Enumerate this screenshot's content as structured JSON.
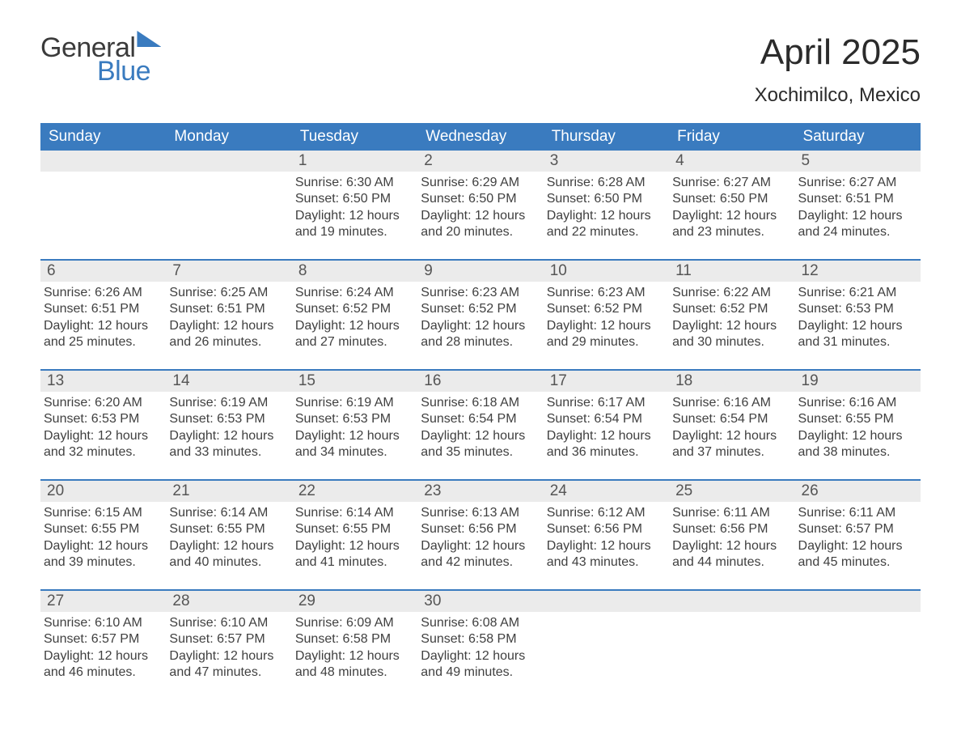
{
  "logo": {
    "general": "General",
    "blue": "Blue"
  },
  "title": "April 2025",
  "location": "Xochimilco, Mexico",
  "colors": {
    "header_bg": "#3a7bbf",
    "header_text": "#ffffff",
    "daynum_bg": "#ebebeb",
    "daynum_text": "#555555",
    "body_text": "#404040",
    "border": "#3a7bbf",
    "page_bg": "#ffffff"
  },
  "typography": {
    "title_fontsize": 44,
    "location_fontsize": 24,
    "weekday_fontsize": 19,
    "daynum_fontsize": 19,
    "body_fontsize": 16
  },
  "weekdays": [
    "Sunday",
    "Monday",
    "Tuesday",
    "Wednesday",
    "Thursday",
    "Friday",
    "Saturday"
  ],
  "weeks": [
    [
      null,
      null,
      {
        "n": "1",
        "sr": "Sunrise: 6:30 AM",
        "ss": "Sunset: 6:50 PM",
        "dl1": "Daylight: 12 hours",
        "dl2": "and 19 minutes."
      },
      {
        "n": "2",
        "sr": "Sunrise: 6:29 AM",
        "ss": "Sunset: 6:50 PM",
        "dl1": "Daylight: 12 hours",
        "dl2": "and 20 minutes."
      },
      {
        "n": "3",
        "sr": "Sunrise: 6:28 AM",
        "ss": "Sunset: 6:50 PM",
        "dl1": "Daylight: 12 hours",
        "dl2": "and 22 minutes."
      },
      {
        "n": "4",
        "sr": "Sunrise: 6:27 AM",
        "ss": "Sunset: 6:50 PM",
        "dl1": "Daylight: 12 hours",
        "dl2": "and 23 minutes."
      },
      {
        "n": "5",
        "sr": "Sunrise: 6:27 AM",
        "ss": "Sunset: 6:51 PM",
        "dl1": "Daylight: 12 hours",
        "dl2": "and 24 minutes."
      }
    ],
    [
      {
        "n": "6",
        "sr": "Sunrise: 6:26 AM",
        "ss": "Sunset: 6:51 PM",
        "dl1": "Daylight: 12 hours",
        "dl2": "and 25 minutes."
      },
      {
        "n": "7",
        "sr": "Sunrise: 6:25 AM",
        "ss": "Sunset: 6:51 PM",
        "dl1": "Daylight: 12 hours",
        "dl2": "and 26 minutes."
      },
      {
        "n": "8",
        "sr": "Sunrise: 6:24 AM",
        "ss": "Sunset: 6:52 PM",
        "dl1": "Daylight: 12 hours",
        "dl2": "and 27 minutes."
      },
      {
        "n": "9",
        "sr": "Sunrise: 6:23 AM",
        "ss": "Sunset: 6:52 PM",
        "dl1": "Daylight: 12 hours",
        "dl2": "and 28 minutes."
      },
      {
        "n": "10",
        "sr": "Sunrise: 6:23 AM",
        "ss": "Sunset: 6:52 PM",
        "dl1": "Daylight: 12 hours",
        "dl2": "and 29 minutes."
      },
      {
        "n": "11",
        "sr": "Sunrise: 6:22 AM",
        "ss": "Sunset: 6:52 PM",
        "dl1": "Daylight: 12 hours",
        "dl2": "and 30 minutes."
      },
      {
        "n": "12",
        "sr": "Sunrise: 6:21 AM",
        "ss": "Sunset: 6:53 PM",
        "dl1": "Daylight: 12 hours",
        "dl2": "and 31 minutes."
      }
    ],
    [
      {
        "n": "13",
        "sr": "Sunrise: 6:20 AM",
        "ss": "Sunset: 6:53 PM",
        "dl1": "Daylight: 12 hours",
        "dl2": "and 32 minutes."
      },
      {
        "n": "14",
        "sr": "Sunrise: 6:19 AM",
        "ss": "Sunset: 6:53 PM",
        "dl1": "Daylight: 12 hours",
        "dl2": "and 33 minutes."
      },
      {
        "n": "15",
        "sr": "Sunrise: 6:19 AM",
        "ss": "Sunset: 6:53 PM",
        "dl1": "Daylight: 12 hours",
        "dl2": "and 34 minutes."
      },
      {
        "n": "16",
        "sr": "Sunrise: 6:18 AM",
        "ss": "Sunset: 6:54 PM",
        "dl1": "Daylight: 12 hours",
        "dl2": "and 35 minutes."
      },
      {
        "n": "17",
        "sr": "Sunrise: 6:17 AM",
        "ss": "Sunset: 6:54 PM",
        "dl1": "Daylight: 12 hours",
        "dl2": "and 36 minutes."
      },
      {
        "n": "18",
        "sr": "Sunrise: 6:16 AM",
        "ss": "Sunset: 6:54 PM",
        "dl1": "Daylight: 12 hours",
        "dl2": "and 37 minutes."
      },
      {
        "n": "19",
        "sr": "Sunrise: 6:16 AM",
        "ss": "Sunset: 6:55 PM",
        "dl1": "Daylight: 12 hours",
        "dl2": "and 38 minutes."
      }
    ],
    [
      {
        "n": "20",
        "sr": "Sunrise: 6:15 AM",
        "ss": "Sunset: 6:55 PM",
        "dl1": "Daylight: 12 hours",
        "dl2": "and 39 minutes."
      },
      {
        "n": "21",
        "sr": "Sunrise: 6:14 AM",
        "ss": "Sunset: 6:55 PM",
        "dl1": "Daylight: 12 hours",
        "dl2": "and 40 minutes."
      },
      {
        "n": "22",
        "sr": "Sunrise: 6:14 AM",
        "ss": "Sunset: 6:55 PM",
        "dl1": "Daylight: 12 hours",
        "dl2": "and 41 minutes."
      },
      {
        "n": "23",
        "sr": "Sunrise: 6:13 AM",
        "ss": "Sunset: 6:56 PM",
        "dl1": "Daylight: 12 hours",
        "dl2": "and 42 minutes."
      },
      {
        "n": "24",
        "sr": "Sunrise: 6:12 AM",
        "ss": "Sunset: 6:56 PM",
        "dl1": "Daylight: 12 hours",
        "dl2": "and 43 minutes."
      },
      {
        "n": "25",
        "sr": "Sunrise: 6:11 AM",
        "ss": "Sunset: 6:56 PM",
        "dl1": "Daylight: 12 hours",
        "dl2": "and 44 minutes."
      },
      {
        "n": "26",
        "sr": "Sunrise: 6:11 AM",
        "ss": "Sunset: 6:57 PM",
        "dl1": "Daylight: 12 hours",
        "dl2": "and 45 minutes."
      }
    ],
    [
      {
        "n": "27",
        "sr": "Sunrise: 6:10 AM",
        "ss": "Sunset: 6:57 PM",
        "dl1": "Daylight: 12 hours",
        "dl2": "and 46 minutes."
      },
      {
        "n": "28",
        "sr": "Sunrise: 6:10 AM",
        "ss": "Sunset: 6:57 PM",
        "dl1": "Daylight: 12 hours",
        "dl2": "and 47 minutes."
      },
      {
        "n": "29",
        "sr": "Sunrise: 6:09 AM",
        "ss": "Sunset: 6:58 PM",
        "dl1": "Daylight: 12 hours",
        "dl2": "and 48 minutes."
      },
      {
        "n": "30",
        "sr": "Sunrise: 6:08 AM",
        "ss": "Sunset: 6:58 PM",
        "dl1": "Daylight: 12 hours",
        "dl2": "and 49 minutes."
      },
      null,
      null,
      null
    ]
  ]
}
